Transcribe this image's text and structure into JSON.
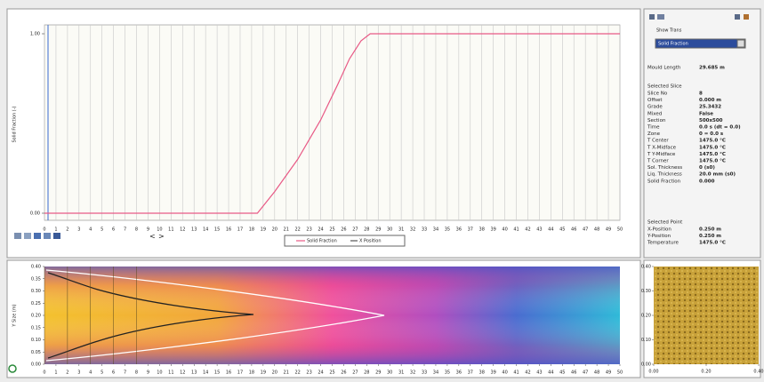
{
  "solid_fraction_chart": {
    "type": "line",
    "y_label": "Solid Fraction (-)",
    "x": [
      0,
      18.5,
      20,
      22,
      24,
      25.5,
      26.5,
      27.5,
      28.3,
      50
    ],
    "series": [
      {
        "name": "Solid Fraction",
        "color": "#e85a86",
        "values": [
          0,
          0,
          0.12,
          0.3,
          0.52,
          0.72,
          0.86,
          0.96,
          1,
          1
        ]
      }
    ],
    "legend_labels": [
      "Solid Fraction",
      "X Position"
    ],
    "xlim": [
      0,
      50
    ],
    "ylim": [
      0,
      1
    ],
    "xticks": [
      0,
      1,
      2,
      3,
      4,
      5,
      6,
      7,
      8,
      9,
      10,
      11,
      12,
      13,
      14,
      15,
      16,
      17,
      18,
      19,
      20,
      21,
      22,
      23,
      24,
      25,
      26,
      27,
      28,
      29,
      30,
      31,
      32,
      33,
      34,
      35,
      36,
      37,
      38,
      39,
      40,
      41,
      42,
      43,
      44,
      45,
      46,
      47,
      48,
      49,
      50
    ],
    "yticks": [
      {
        "value": 0,
        "label": "0.00"
      },
      {
        "value": 1,
        "label": "1.00"
      }
    ],
    "grid": true,
    "nav": [
      "<",
      ">"
    ]
  },
  "section_map": {
    "y_label": "Y Size (m)",
    "xlim": [
      0,
      50
    ],
    "ylim": [
      0,
      0.4
    ],
    "xticks": [
      0,
      1,
      2,
      3,
      4,
      5,
      6,
      7,
      8,
      9,
      10,
      11,
      12,
      13,
      14,
      15,
      16,
      17,
      18,
      19,
      20,
      21,
      22,
      23,
      24,
      25,
      26,
      27,
      28,
      29,
      30,
      31,
      32,
      33,
      34,
      35,
      36,
      37,
      38,
      39,
      40,
      41,
      42,
      43,
      44,
      45,
      46,
      47,
      48,
      49,
      50
    ],
    "yticks": [
      {
        "value": 0.4,
        "label": "0.40"
      },
      {
        "value": 0.35,
        "label": "0.35"
      },
      {
        "value": 0.3,
        "label": "0.30"
      },
      {
        "value": 0.25,
        "label": "0.25"
      },
      {
        "value": 0.2,
        "label": "0.20"
      },
      {
        "value": 0.15,
        "label": "0.15"
      },
      {
        "value": 0.1,
        "label": "0.10"
      },
      {
        "value": 0.05,
        "label": "0.05"
      },
      {
        "value": 0,
        "label": "0.00"
      }
    ]
  },
  "slice_view": {
    "xlim": [
      0,
      0.4
    ],
    "ylim": [
      0,
      0.4
    ],
    "xticks": [
      {
        "value": 0,
        "label": "0.00"
      },
      {
        "value": 0.2,
        "label": "0.20"
      },
      {
        "value": 0.4,
        "label": "0.40"
      }
    ],
    "yticks": [
      {
        "value": 0.4,
        "label": "0.40"
      },
      {
        "value": 0.3,
        "label": "0.30"
      },
      {
        "value": 0.2,
        "label": "0.20"
      },
      {
        "value": 0.1,
        "label": "0.10"
      },
      {
        "value": 0,
        "label": "0.00"
      }
    ]
  },
  "side_panel": {
    "show_label": "Show Trans",
    "dropdown": "Solid Fraction",
    "mould_length": {
      "label": "Mould Length",
      "value": "29.685 m"
    },
    "selected_slice_title": "Selected Slice",
    "slice_props": [
      {
        "label": "Slice No",
        "value": "8"
      },
      {
        "label": "Offset",
        "value": "0.000 m"
      },
      {
        "label": "Grade",
        "value": "25.3432"
      },
      {
        "label": "Mixed",
        "value": "False"
      },
      {
        "label": "Section",
        "value": "500x500"
      },
      {
        "label": "Time",
        "value": "0.0 s (dt = 0.0)"
      },
      {
        "label": "Zone",
        "value": "0 = 0.0 s"
      },
      {
        "label": "T Center",
        "value": "1475.0 °C"
      },
      {
        "label": "T X-Midface",
        "value": "1475.0 °C"
      },
      {
        "label": "T Y-Midface",
        "value": "1475.0 °C"
      },
      {
        "label": "T Corner",
        "value": "1475.0 °C"
      },
      {
        "label": "Sol. Thickness",
        "value": "0 (s0)"
      },
      {
        "label": "Liq. Thickness",
        "value": "20.0 mm (s0)"
      },
      {
        "label": "Solid Fraction",
        "value": "0.000"
      }
    ],
    "selected_point_title": "Selected Point",
    "point_props": [
      {
        "label": "X-Position",
        "value": "0.250 m"
      },
      {
        "label": "Y-Position",
        "value": "0.250 m"
      },
      {
        "label": "Temperature",
        "value": "1475.0 °C"
      }
    ]
  }
}
